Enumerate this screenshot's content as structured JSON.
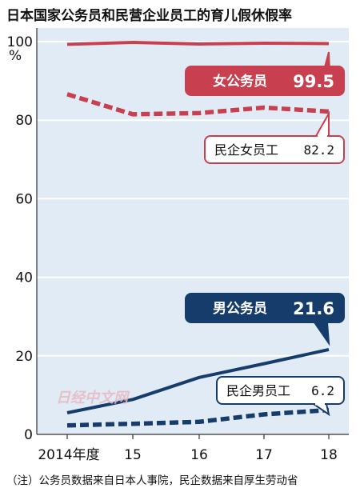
{
  "title": "日本国家公务员和民营企业员工的育儿假休假率",
  "note": "（注）公务员数据来自日本人事院，民企数据来自厚生劳动省",
  "watermark": "日经中文网",
  "colors": {
    "plot_bg": "#e0ebf5",
    "grid": "#ffffff",
    "red": "#c8404f",
    "navy": "#153c6b"
  },
  "chart_data": {
    "type": "line",
    "title": "日本国家公务员和民营企业员工的育儿假休假率",
    "ylabel": "%",
    "ylim": [
      0,
      100
    ],
    "yticks": [
      0,
      20,
      40,
      60,
      80,
      100
    ],
    "x": [
      "2014年度",
      "15",
      "16",
      "17",
      "18"
    ],
    "grid": true,
    "series": [
      {
        "name": "女公务员",
        "values": [
          99.3,
          99.8,
          99.4,
          99.6,
          99.5
        ],
        "color": "#c8404f",
        "style": "solid",
        "label": "99.5",
        "callout": "filled"
      },
      {
        "name": "民企女员工",
        "values": [
          86.6,
          81.5,
          81.8,
          83.2,
          82.2
        ],
        "color": "#c8404f",
        "style": "dashed",
        "label": "82.2",
        "callout": "outline"
      },
      {
        "name": "男公务员",
        "values": [
          5.5,
          8.9,
          14.5,
          18.0,
          21.6
        ],
        "color": "#153c6b",
        "style": "solid",
        "label": "21.6",
        "callout": "filled"
      },
      {
        "name": "民企男员工",
        "values": [
          2.3,
          2.7,
          3.2,
          5.1,
          6.2
        ],
        "color": "#153c6b",
        "style": "dashed",
        "label": "6.2",
        "callout": "outline"
      }
    ]
  }
}
